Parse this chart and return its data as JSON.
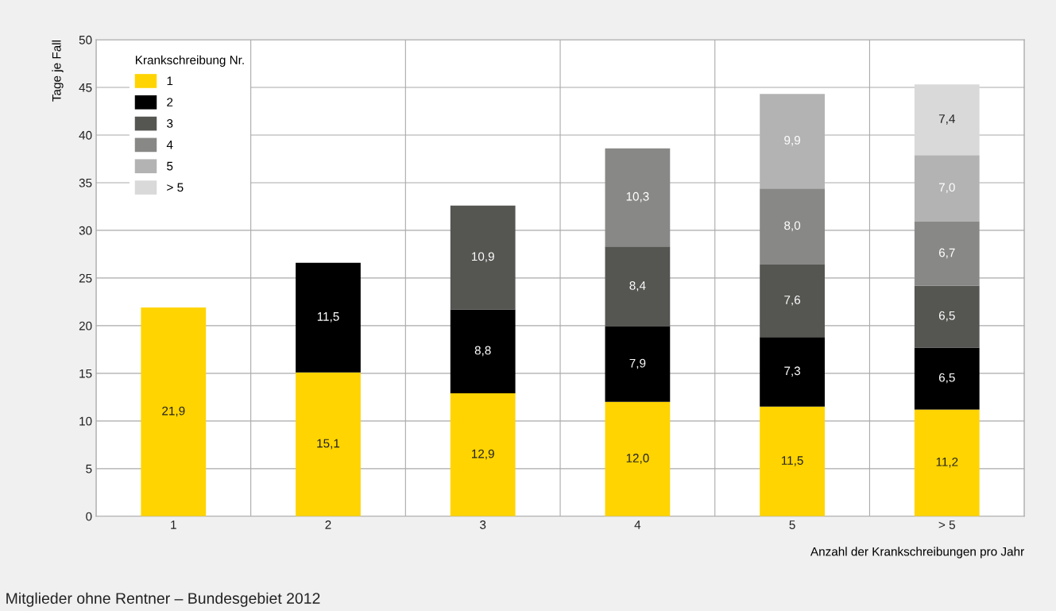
{
  "chart_data": {
    "type": "bar",
    "stacked": true,
    "categories": [
      "1",
      "2",
      "3",
      "4",
      "5",
      "> 5"
    ],
    "series": [
      {
        "name": "1",
        "color": "#ffd400",
        "values": [
          21.9,
          15.1,
          12.9,
          12.0,
          11.5,
          11.2
        ],
        "value_labels": [
          "21,9",
          "15,1",
          "12,9",
          "12,0",
          "11,5",
          "11,2"
        ]
      },
      {
        "name": "2",
        "color": "#000000",
        "values": [
          null,
          11.5,
          8.8,
          7.9,
          7.3,
          6.5
        ],
        "value_labels": [
          null,
          "11,5",
          "8,8",
          "7,9",
          "7,3",
          "6,5"
        ]
      },
      {
        "name": "3",
        "color": "#555552",
        "values": [
          null,
          null,
          10.9,
          8.4,
          7.6,
          6.5
        ],
        "value_labels": [
          null,
          null,
          "10,9",
          "8,4",
          "7,6",
          "6,5"
        ]
      },
      {
        "name": "4",
        "color": "#888886",
        "values": [
          null,
          null,
          null,
          10.3,
          8.0,
          6.7
        ],
        "value_labels": [
          null,
          null,
          null,
          "10,3",
          "8,0",
          "6,7"
        ]
      },
      {
        "name": "5",
        "color": "#b3b3b3",
        "values": [
          null,
          null,
          null,
          null,
          9.9,
          7.0
        ],
        "value_labels": [
          null,
          null,
          null,
          null,
          "9,9",
          "7,0"
        ]
      },
      {
        "name": "> 5",
        "color": "#d9d9d9",
        "values": [
          null,
          null,
          null,
          null,
          null,
          7.4
        ],
        "value_labels": [
          null,
          null,
          null,
          null,
          null,
          "7,4"
        ]
      }
    ],
    "ylabel": "Tage je Fall",
    "xlabel": "Anzahl der Krankschreibungen pro Jahr",
    "legend_title": "Krankschreibung Nr.",
    "legend": "top left",
    "ylim": [
      0,
      50
    ],
    "yticks": [
      0,
      5,
      10,
      15,
      20,
      25,
      30,
      35,
      40,
      45,
      50
    ],
    "grid": true,
    "annotations": [
      "Mitglieder ohne Rentner – Bundesgebiet 2012"
    ]
  }
}
